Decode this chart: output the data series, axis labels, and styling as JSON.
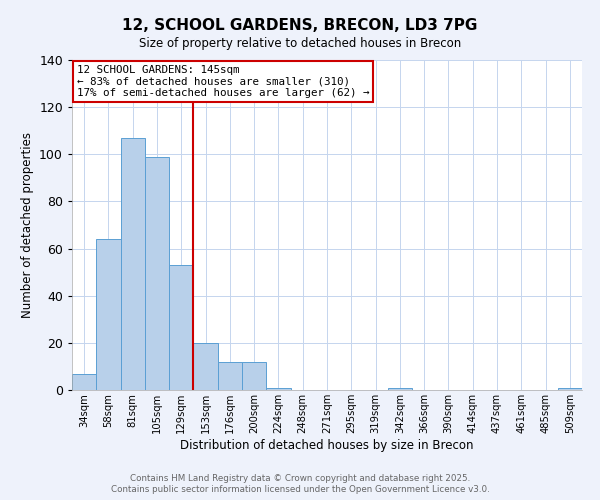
{
  "title": "12, SCHOOL GARDENS, BRECON, LD3 7PG",
  "subtitle": "Size of property relative to detached houses in Brecon",
  "xlabel": "Distribution of detached houses by size in Brecon",
  "ylabel": "Number of detached properties",
  "bin_labels": [
    "34sqm",
    "58sqm",
    "81sqm",
    "105sqm",
    "129sqm",
    "153sqm",
    "176sqm",
    "200sqm",
    "224sqm",
    "248sqm",
    "271sqm",
    "295sqm",
    "319sqm",
    "342sqm",
    "366sqm",
    "390sqm",
    "414sqm",
    "437sqm",
    "461sqm",
    "485sqm",
    "509sqm"
  ],
  "bar_heights": [
    7,
    64,
    107,
    99,
    53,
    20,
    12,
    12,
    1,
    0,
    0,
    0,
    0,
    1,
    0,
    0,
    0,
    0,
    0,
    0,
    1
  ],
  "bar_color": "#b8d0ea",
  "bar_edge_color": "#5a9fd4",
  "vline_color": "#cc0000",
  "vline_pos": 4.5,
  "annotation_title": "12 SCHOOL GARDENS: 145sqm",
  "annotation_line1": "← 83% of detached houses are smaller (310)",
  "annotation_line2": "17% of semi-detached houses are larger (62) →",
  "annotation_box_color": "#ffffff",
  "annotation_box_edge": "#cc0000",
  "ylim": [
    0,
    140
  ],
  "yticks": [
    0,
    20,
    40,
    60,
    80,
    100,
    120,
    140
  ],
  "footer_line1": "Contains HM Land Registry data © Crown copyright and database right 2025.",
  "footer_line2": "Contains public sector information licensed under the Open Government Licence v3.0.",
  "background_color": "#eef2fb",
  "plot_background_color": "#ffffff",
  "grid_color": "#c5d5ee"
}
